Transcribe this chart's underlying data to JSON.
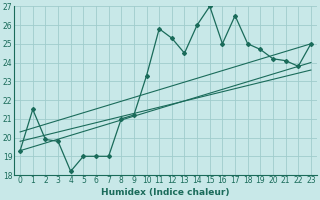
{
  "title": "",
  "xlabel": "Humidex (Indice chaleur)",
  "bg_color": "#c8e8e8",
  "line_color": "#1a6b5a",
  "grid_color": "#a0cccc",
  "xlim": [
    -0.5,
    23.5
  ],
  "ylim": [
    18,
    27
  ],
  "x_ticks": [
    0,
    1,
    2,
    3,
    4,
    5,
    6,
    7,
    8,
    9,
    10,
    11,
    12,
    13,
    14,
    15,
    16,
    17,
    18,
    19,
    20,
    21,
    22,
    23
  ],
  "y_ticks": [
    18,
    19,
    20,
    21,
    22,
    23,
    24,
    25,
    26,
    27
  ],
  "main_data_x": [
    0,
    1,
    2,
    3,
    4,
    5,
    6,
    7,
    8,
    9,
    10,
    11,
    12,
    13,
    14,
    15,
    16,
    17,
    18,
    19,
    20,
    21,
    22,
    23
  ],
  "main_data_y": [
    19.3,
    21.5,
    19.9,
    19.8,
    18.2,
    19.0,
    19.0,
    19.0,
    21.0,
    21.2,
    23.3,
    25.8,
    25.3,
    24.5,
    26.0,
    27.0,
    25.0,
    26.5,
    25.0,
    24.7,
    24.2,
    24.1,
    23.8,
    25.0
  ],
  "trend1_x": [
    0,
    23
  ],
  "trend1_y": [
    19.3,
    24.0
  ],
  "trend2_x": [
    0,
    23
  ],
  "trend2_y": [
    19.8,
    23.6
  ],
  "trend3_x": [
    0,
    23
  ],
  "trend3_y": [
    20.3,
    25.0
  ],
  "xlabel_fontsize": 6.5,
  "tick_fontsize": 5.5
}
